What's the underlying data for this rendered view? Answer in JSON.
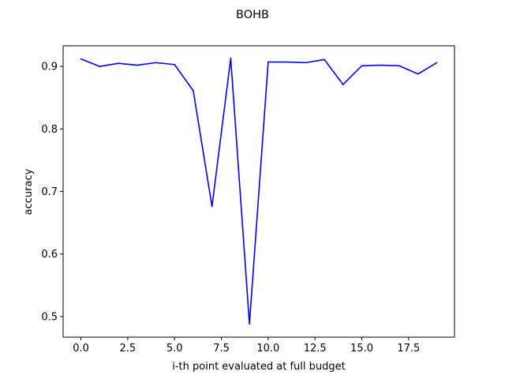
{
  "chart_data": {
    "type": "line",
    "title": "BOHB",
    "xlabel": "i-th point evaluated at full budget",
    "ylabel": "accuracy",
    "xlim": [
      -0.95,
      19.95
    ],
    "ylim": [
      0.467,
      0.933
    ],
    "xticks": [
      0.0,
      2.5,
      5.0,
      7.5,
      10.0,
      12.5,
      15.0,
      17.5
    ],
    "xtick_labels": [
      "0.0",
      "2.5",
      "5.0",
      "7.5",
      "10.0",
      "12.5",
      "15.0",
      "17.5"
    ],
    "yticks": [
      0.5,
      0.6,
      0.7,
      0.8,
      0.9
    ],
    "ytick_labels": [
      "0.5",
      "0.6",
      "0.7",
      "0.8",
      "0.9"
    ],
    "grid": false,
    "legend": false,
    "series": [
      {
        "color": "#0000ff",
        "x": [
          0,
          1,
          2,
          3,
          4,
          5,
          6,
          7,
          8,
          9,
          10,
          11,
          12,
          13,
          14,
          15,
          16,
          17,
          18,
          19
        ],
        "values": [
          0.912,
          0.9,
          0.905,
          0.902,
          0.906,
          0.903,
          0.861,
          0.676,
          0.913,
          0.488,
          0.907,
          0.907,
          0.906,
          0.911,
          0.871,
          0.901,
          0.902,
          0.901,
          0.888,
          0.906
        ]
      }
    ]
  }
}
